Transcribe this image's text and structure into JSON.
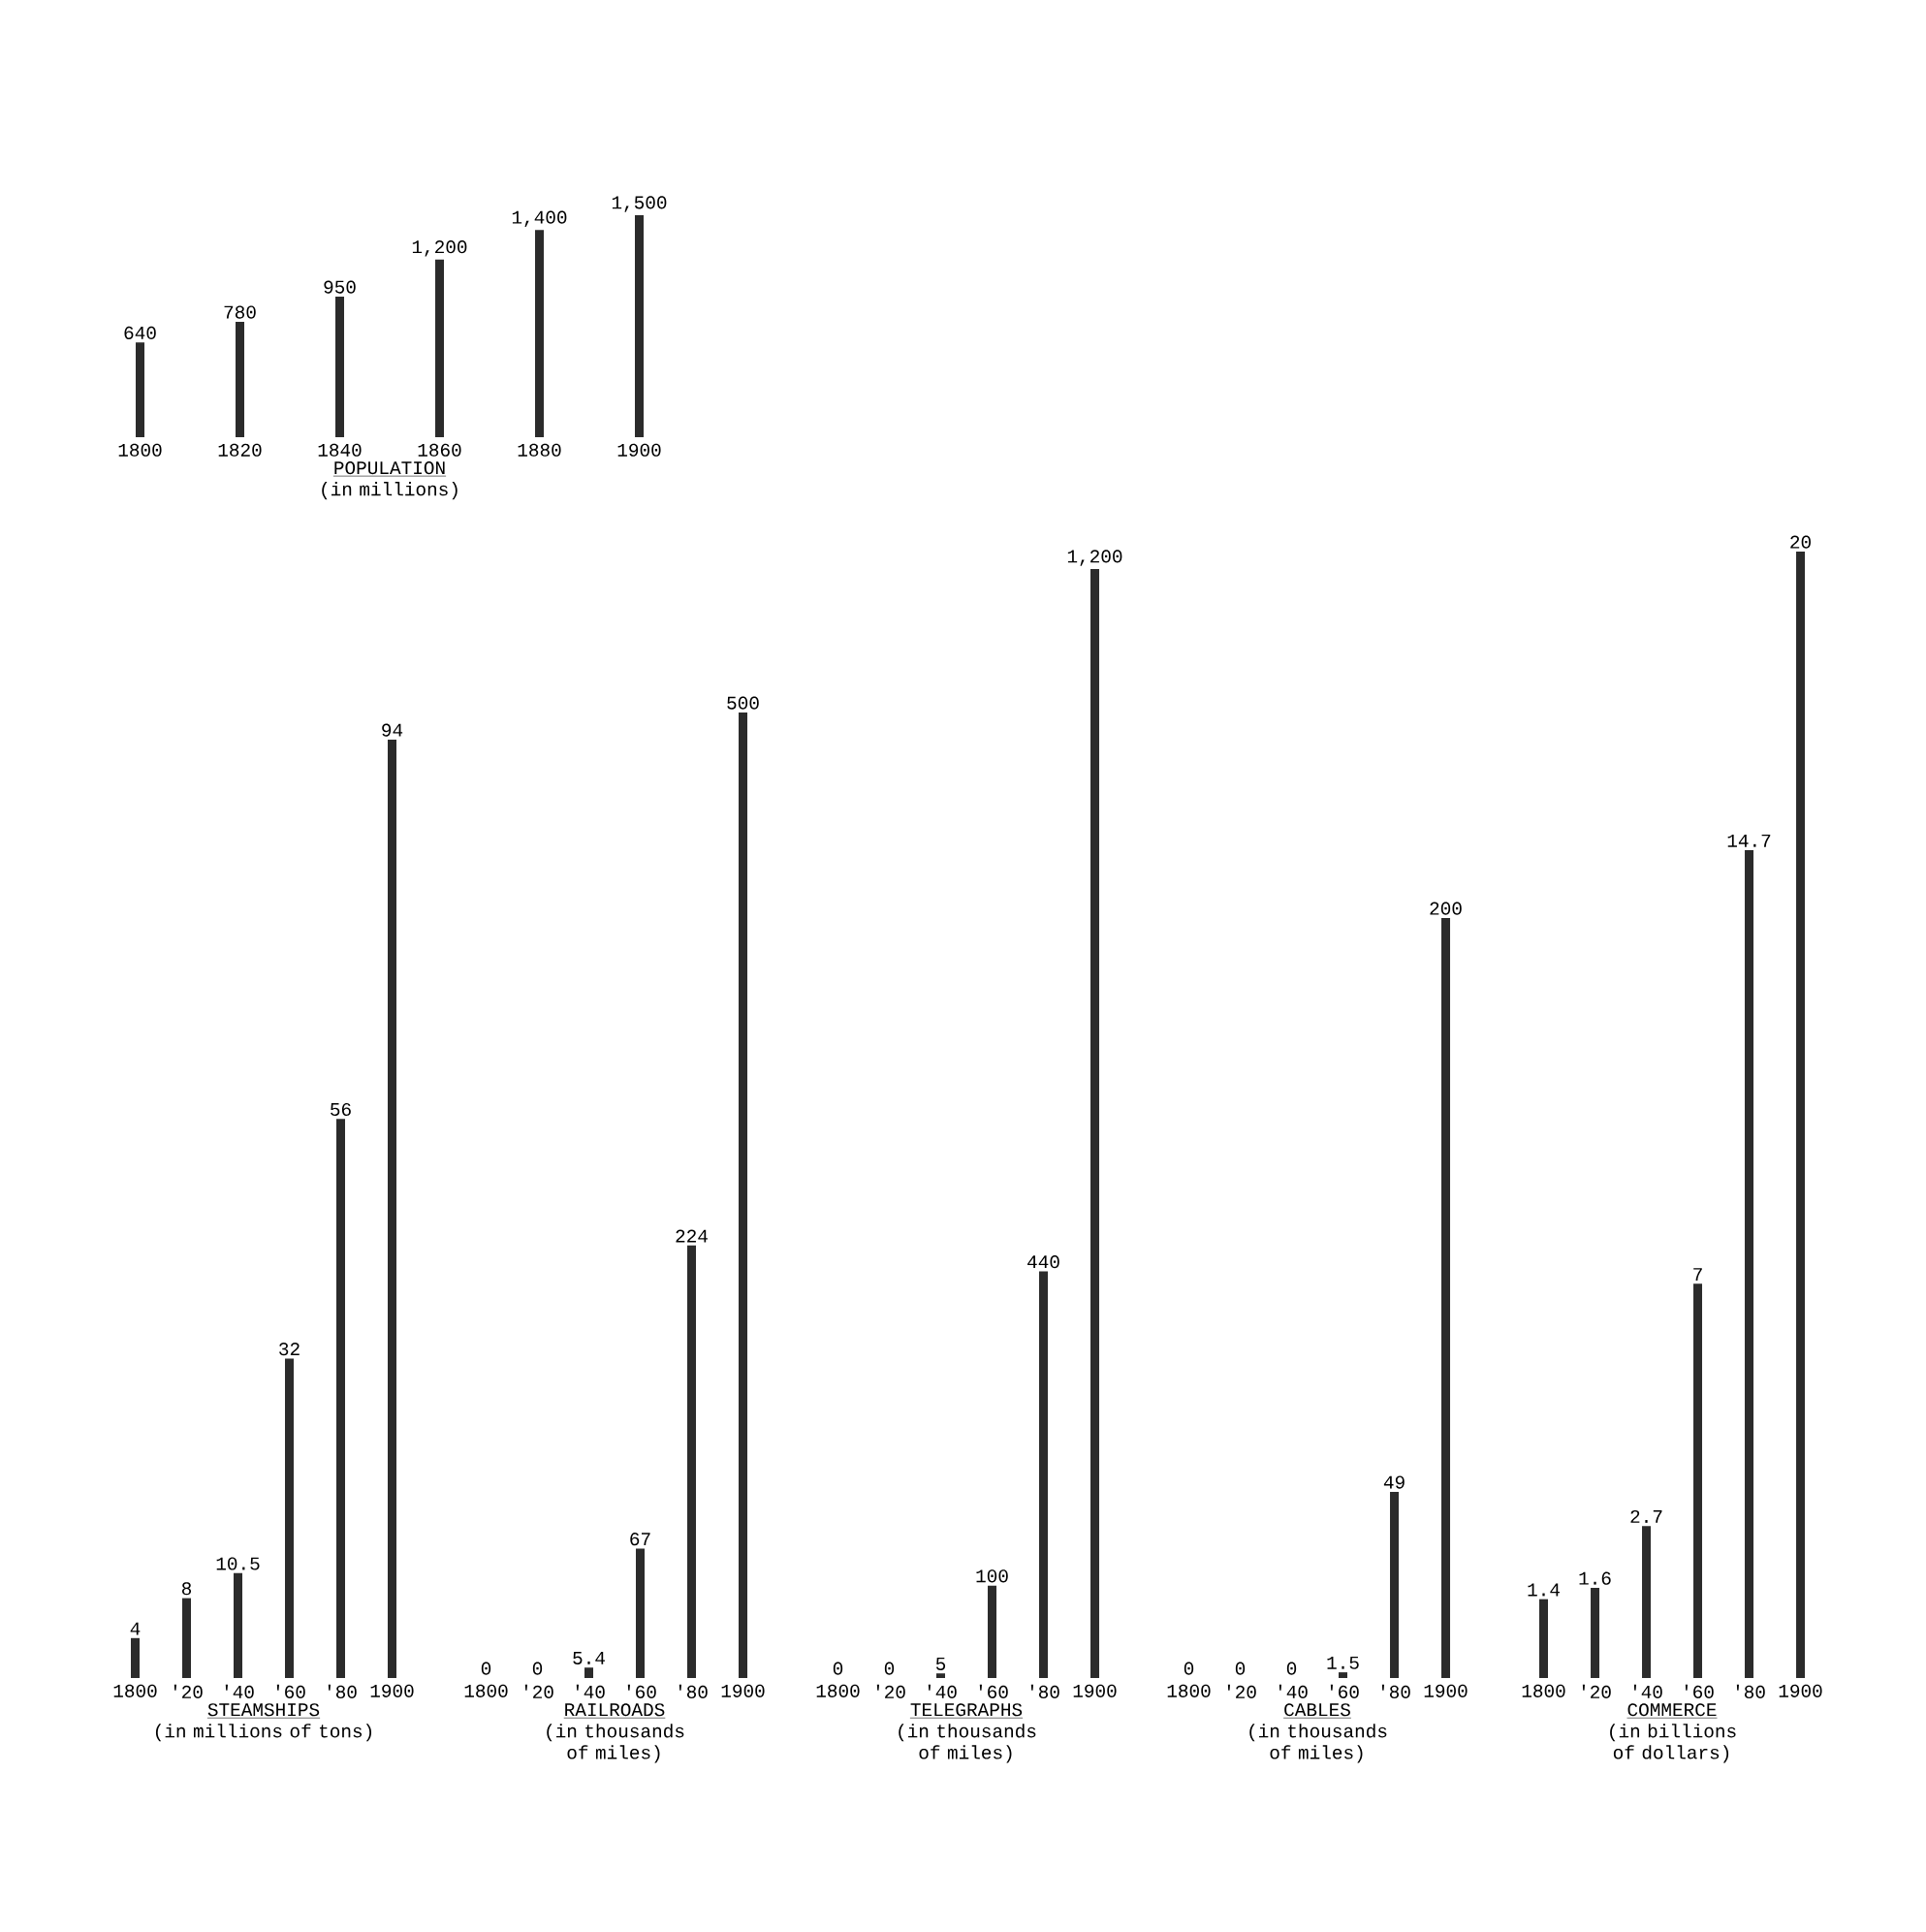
{
  "chart_data": [
    {
      "type": "bar",
      "xlabel": "POPULATION",
      "subtitle": "(in millions)",
      "categories": [
        "1800",
        "1820",
        "1840",
        "1860",
        "1880",
        "1900"
      ],
      "values": [
        640,
        780,
        950,
        1200,
        1400,
        1500
      ],
      "value_labels": [
        "640",
        "780",
        "950",
        "1,200",
        "1,400",
        "1,500"
      ],
      "color": "#2b2b2b",
      "tick_labels": "x"
    },
    {
      "type": "bar",
      "xlabel": "STEAMSHIPS",
      "subtitle": "(in millions of tons)",
      "categories": [
        "1800",
        "'20",
        "'40",
        "'60",
        "'80",
        "1900"
      ],
      "values": [
        4,
        8,
        10.5,
        32,
        56,
        94
      ],
      "value_labels": [
        "4",
        "8",
        "10.5",
        "32",
        "56",
        "94"
      ],
      "color": "#2b2b2b",
      "tick_labels": "x"
    },
    {
      "type": "bar",
      "xlabel": "RAILROADS",
      "subtitle": "(in thousands of miles)",
      "categories": [
        "1800",
        "'20",
        "'40",
        "'60",
        "'80",
        "1900"
      ],
      "values": [
        0,
        0,
        5.4,
        67,
        224,
        500
      ],
      "value_labels": [
        "0",
        "0",
        "5.4",
        "67",
        "224",
        "500"
      ],
      "color": "#2b2b2b",
      "tick_labels": "x"
    },
    {
      "type": "bar",
      "xlabel": "TELEGRAPHS",
      "subtitle": "(in thousands of miles)",
      "categories": [
        "1800",
        "'20",
        "'40",
        "'60",
        "'80",
        "1900"
      ],
      "values": [
        0,
        0,
        5,
        100,
        440,
        1200
      ],
      "value_labels": [
        "0",
        "0",
        "5",
        "100",
        "440",
        "1,200"
      ],
      "color": "#2b2b2b",
      "tick_labels": "x"
    },
    {
      "type": "bar",
      "xlabel": "CABLES",
      "subtitle": "(in thousands of miles)",
      "categories": [
        "1800",
        "'20",
        "'40",
        "'60",
        "'80",
        "1900"
      ],
      "values": [
        0,
        0,
        0,
        1.5,
        49,
        200
      ],
      "value_labels": [
        "0",
        "0",
        "0",
        "1.5",
        "49",
        "200"
      ],
      "color": "#2b2b2b",
      "tick_labels": "x"
    },
    {
      "type": "bar",
      "xlabel": "COMMERCE",
      "subtitle": "(in billions of dollars)",
      "categories": [
        "1800",
        "'20",
        "'40",
        "'60",
        "'80",
        "1900"
      ],
      "values": [
        1.4,
        1.6,
        2.7,
        7,
        14.7,
        20
      ],
      "value_labels": [
        "1.4",
        "1.6",
        "2.7",
        "7",
        "14.7",
        "20"
      ],
      "color": "#2b2b2b",
      "tick_labels": "x"
    }
  ]
}
